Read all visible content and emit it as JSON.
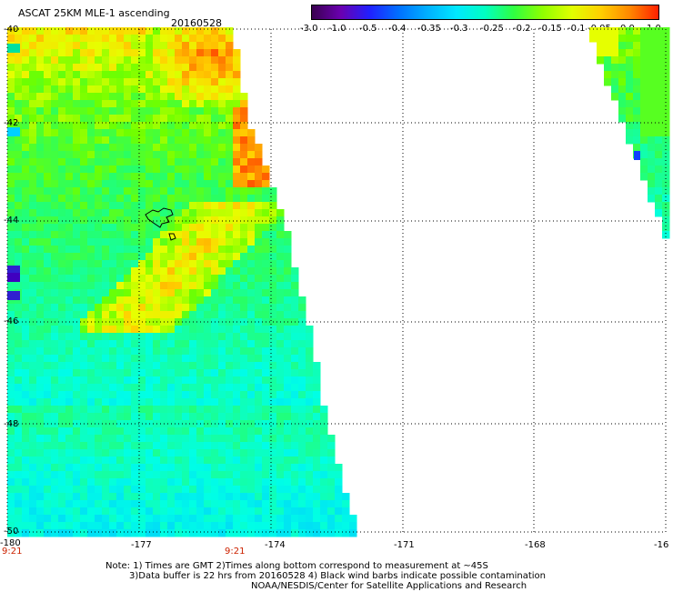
{
  "header": {
    "title": "ASCAT 25KM MLE-1 ascending",
    "date": "20160528"
  },
  "colorbar": {
    "labels": [
      "-3.0",
      "-1.0",
      "-0.5",
      "-0.4",
      "-0.35",
      "-0.3",
      "-0.25",
      "-0.2",
      "-0.15",
      "-0.1",
      "-0.05",
      "0.0",
      "1.0"
    ],
    "colors": [
      "#3a0050",
      "#6a00b0",
      "#2020ff",
      "#0070ff",
      "#00b0ff",
      "#00e8ff",
      "#00ffc0",
      "#30ff40",
      "#90ff00",
      "#e0ff00",
      "#ffd000",
      "#ff8800",
      "#ff2000"
    ]
  },
  "map": {
    "lat_labels": [
      "-40",
      "-42",
      "-44",
      "-46",
      "-48",
      "-50"
    ],
    "lon_labels": [
      "-180",
      "-177",
      "-174",
      "-171",
      "-168",
      "-16"
    ],
    "time_labels": [
      "9:21",
      "9:21"
    ],
    "island_label": "¸"
  },
  "footer": {
    "line1": "Note: 1) Times are GMT 2)Times along bottom correspond to measurement at ~45S",
    "line2": "3)Data buffer is 22 hrs from 20160528 4) Black wind barbs indicate possible contamination",
    "line3": "NOAA/NESDIS/Center for Satellite Applications and Research"
  }
}
